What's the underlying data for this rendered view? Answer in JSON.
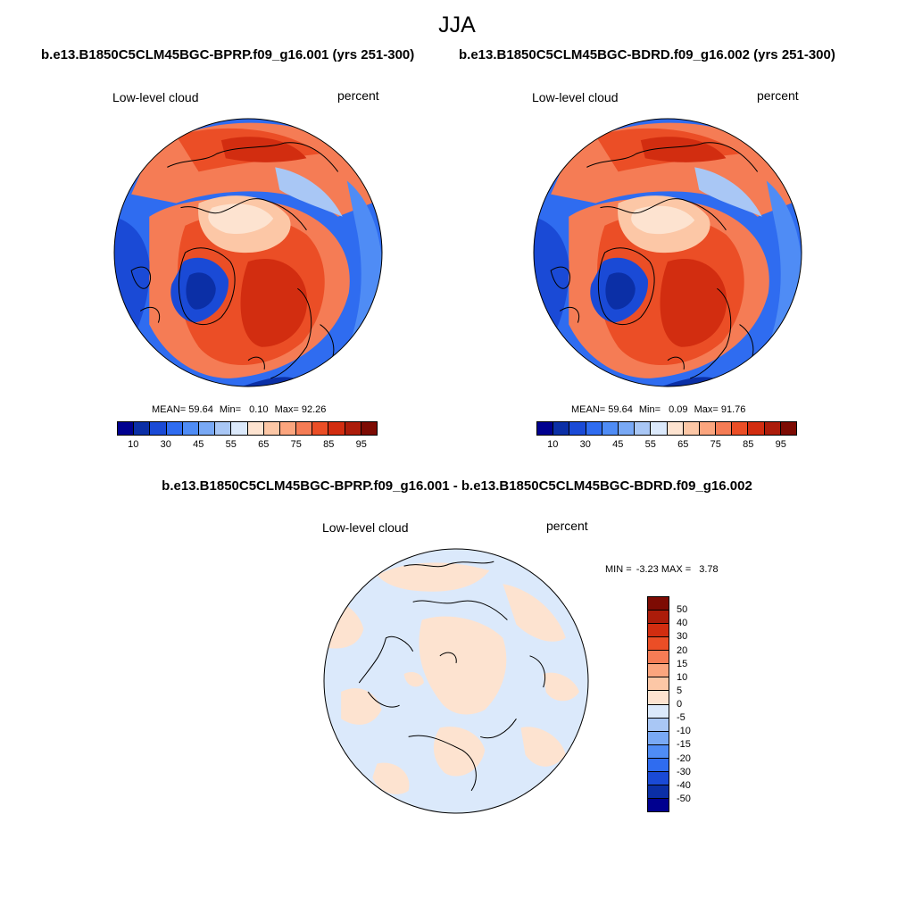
{
  "season_title": "JJA",
  "panels": [
    {
      "case_title": "b.e13.B1850C5CLM45BGC-BPRP.f09_g16.001 (yrs 251-300)",
      "variable": "Low-level cloud",
      "units": "percent",
      "stats": {
        "mean_label": "MEAN=",
        "mean": "59.64",
        "min_label": "Min=",
        "min": "0.10",
        "max_label": "Max=",
        "max": "92.26"
      }
    },
    {
      "case_title": "b.e13.B1850C5CLM45BGC-BDRD.f09_g16.002 (yrs 251-300)",
      "variable": "Low-level cloud",
      "units": "percent",
      "stats": {
        "mean_label": "MEAN=",
        "mean": "59.64",
        "min_label": "Min=",
        "min": "0.09",
        "max_label": "Max=",
        "max": "91.76"
      }
    }
  ],
  "abs_colorbar": {
    "colors": [
      "#00008f",
      "#0b2fa6",
      "#1a4ad6",
      "#2f6cf0",
      "#4f8cf5",
      "#79a9f5",
      "#a9c7f5",
      "#dbe9fb",
      "#fde3d0",
      "#fcc7a6",
      "#fba57e",
      "#f57c55",
      "#eb4e26",
      "#d22d10",
      "#ac1c0a",
      "#7d0b03"
    ],
    "tick_labels": [
      "10",
      "30",
      "45",
      "55",
      "65",
      "75",
      "85",
      "95"
    ]
  },
  "diff_panel": {
    "title": "b.e13.B1850C5CLM45BGC-BPRP.f09_g16.001 - b.e13.B1850C5CLM45BGC-BDRD.f09_g16.002",
    "variable": "Low-level cloud",
    "units": "percent",
    "stats": {
      "min_label": "MIN =",
      "min": "-3.23",
      "max_label": "MAX =",
      "max": "3.78"
    }
  },
  "diff_colorbar": {
    "colors_top_to_bottom": [
      "#7d0b03",
      "#ac1c0a",
      "#d22d10",
      "#eb4e26",
      "#f57c55",
      "#fba57e",
      "#fcc7a6",
      "#fde3d0",
      "#dbe9fb",
      "#a9c7f5",
      "#79a9f5",
      "#4f8cf5",
      "#2f6cf0",
      "#1a4ad6",
      "#0b2fa6",
      "#00008f"
    ],
    "tick_labels": [
      "50",
      "40",
      "30",
      "20",
      "15",
      "10",
      "5",
      "0",
      "-5",
      "-10",
      "-15",
      "-20",
      "-30",
      "-40",
      "-50"
    ]
  }
}
